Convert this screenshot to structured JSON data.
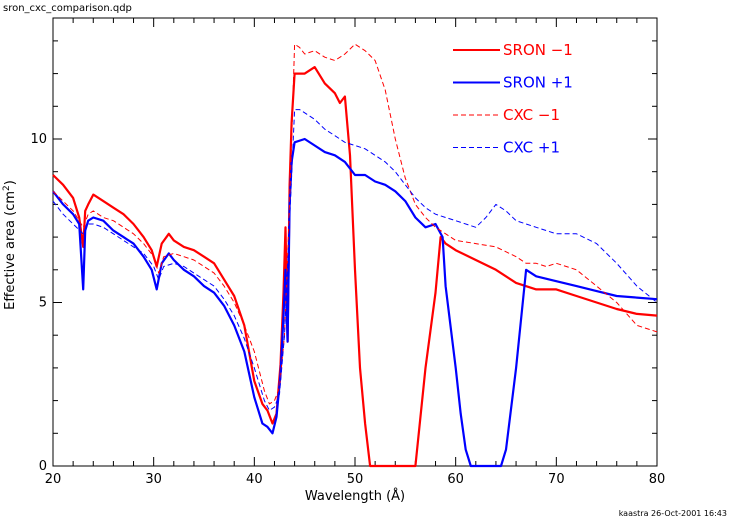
{
  "chart_data": {
    "type": "line",
    "title": "sron_cxc_comparison.qdp",
    "xlabel": "Wavelength (Å)",
    "ylabel_main": "Effective area (cm",
    "ylabel_sup": "2",
    "ylabel_close": ")",
    "footer": "kaastra 26-Oct-2001 16:43",
    "xlim": [
      20,
      80
    ],
    "ylim": [
      0,
      13.7
    ],
    "xticks": [
      20,
      30,
      40,
      50,
      60,
      70,
      80
    ],
    "xtick_labels": [
      "20",
      "30",
      "40",
      "50",
      "60",
      "70",
      "80"
    ],
    "yticks": [
      0,
      5,
      10
    ],
    "ytick_labels": [
      "0",
      "5",
      "10"
    ],
    "legend_position": "top-right",
    "series": [
      {
        "name": "SRON −1",
        "color": "#ff0000",
        "style": "solid",
        "x": [
          20,
          21,
          22,
          22.6,
          23,
          23.2,
          23.5,
          24,
          25,
          26,
          27,
          28,
          29,
          29.8,
          30.3,
          30.8,
          31.5,
          32,
          33,
          34,
          35,
          36,
          37,
          38,
          39,
          40,
          40.8,
          41.3,
          41.8,
          42.2,
          42.6,
          42.9,
          43.1,
          43.3,
          43.5,
          43.7,
          44,
          45,
          46,
          47,
          48,
          48.5,
          49,
          49.5,
          50,
          50.5,
          51,
          51.5,
          52,
          53,
          54,
          55,
          55.5,
          56,
          57,
          58,
          58.5,
          59,
          60,
          62,
          64,
          66,
          68,
          70,
          72,
          74,
          76,
          78,
          80
        ],
        "y": [
          8.9,
          8.6,
          8.2,
          7.6,
          6.7,
          7.8,
          8.0,
          8.3,
          8.1,
          7.9,
          7.7,
          7.4,
          7.0,
          6.6,
          6.1,
          6.8,
          7.1,
          6.9,
          6.7,
          6.6,
          6.4,
          6.2,
          5.7,
          5.2,
          4.3,
          2.6,
          1.9,
          1.7,
          1.3,
          1.6,
          3.1,
          5.3,
          7.3,
          3.8,
          8.6,
          10.5,
          12.0,
          12.0,
          12.2,
          11.7,
          11.4,
          11.1,
          11.3,
          9.5,
          6.0,
          3.0,
          1.3,
          0.0,
          0.0,
          0.0,
          0.0,
          0.0,
          0.0,
          0.0,
          3.0,
          5.3,
          7.0,
          6.8,
          6.6,
          6.3,
          6.0,
          5.6,
          5.4,
          5.4,
          5.2,
          5.0,
          4.8,
          4.65,
          4.6
        ]
      },
      {
        "name": "SRON +1",
        "color": "#0000ff",
        "style": "solid",
        "x": [
          20,
          21,
          22,
          22.6,
          23,
          23.2,
          23.5,
          24,
          25,
          26,
          27,
          28,
          29,
          29.8,
          30.3,
          30.8,
          31.5,
          32,
          33,
          34,
          35,
          36,
          37,
          38,
          39,
          40,
          40.8,
          41.3,
          41.8,
          42.2,
          42.6,
          42.9,
          43.1,
          43.3,
          43.5,
          43.7,
          44,
          45,
          46,
          47,
          48,
          49,
          50,
          51,
          52,
          53,
          54,
          55,
          56,
          57,
          58,
          58.7,
          59,
          60,
          60.5,
          61,
          61.5,
          62,
          63,
          64,
          64.5,
          65,
          66,
          66.5,
          67,
          68,
          70,
          72,
          74,
          76,
          78,
          80
        ],
        "y": [
          8.4,
          8.0,
          7.7,
          7.4,
          5.4,
          7.2,
          7.5,
          7.6,
          7.5,
          7.2,
          7.0,
          6.8,
          6.4,
          6.0,
          5.4,
          6.2,
          6.5,
          6.3,
          6.0,
          5.8,
          5.5,
          5.3,
          4.9,
          4.3,
          3.5,
          2.1,
          1.3,
          1.2,
          1.0,
          1.5,
          2.8,
          4.6,
          6.0,
          3.8,
          8.0,
          9.3,
          9.9,
          10.0,
          9.8,
          9.6,
          9.5,
          9.3,
          8.9,
          8.9,
          8.7,
          8.6,
          8.4,
          8.1,
          7.6,
          7.3,
          7.4,
          7.0,
          5.5,
          3.0,
          1.6,
          0.5,
          0.0,
          0.0,
          0.0,
          0.0,
          0.0,
          0.5,
          3.0,
          4.5,
          6.0,
          5.8,
          5.65,
          5.5,
          5.35,
          5.2,
          5.15,
          5.1
        ]
      },
      {
        "name": "CXC −1",
        "color": "#ff0000",
        "style": "dashed",
        "x": [
          20,
          21,
          22,
          23,
          23.5,
          24,
          25,
          26,
          27,
          28,
          29,
          30,
          30.5,
          31,
          32,
          33,
          34,
          35,
          36,
          37,
          38,
          39,
          40,
          41,
          41.5,
          42,
          42.5,
          43,
          43.5,
          44,
          44.5,
          45,
          46,
          47,
          48,
          49,
          50,
          51,
          52,
          53,
          54,
          55,
          56,
          57,
          58,
          59,
          60,
          62,
          64,
          66,
          67,
          68,
          69,
          70,
          72,
          74,
          76,
          78,
          80
        ],
        "y": [
          8.4,
          8.1,
          7.8,
          7.3,
          7.7,
          7.8,
          7.6,
          7.5,
          7.3,
          7.1,
          6.8,
          6.4,
          5.9,
          6.4,
          6.5,
          6.4,
          6.3,
          6.1,
          5.9,
          5.5,
          5.0,
          4.3,
          3.5,
          2.3,
          1.9,
          2.0,
          2.4,
          4.0,
          8.0,
          12.9,
          12.8,
          12.6,
          12.7,
          12.5,
          12.4,
          12.6,
          12.9,
          12.7,
          12.4,
          11.5,
          10.0,
          8.8,
          8.0,
          7.6,
          7.3,
          7.1,
          6.9,
          6.8,
          6.7,
          6.4,
          6.2,
          6.2,
          6.1,
          6.2,
          6.0,
          5.5,
          5.0,
          4.3,
          4.1
        ]
      },
      {
        "name": "CXC +1",
        "color": "#0000ff",
        "style": "dashed",
        "x": [
          20,
          21,
          22,
          23,
          23.5,
          24,
          25,
          26,
          27,
          28,
          29,
          30,
          30.5,
          31,
          32,
          33,
          34,
          35,
          36,
          37,
          38,
          39,
          40,
          41,
          41.5,
          42,
          42.5,
          43,
          43.5,
          44,
          44.5,
          45,
          46,
          47,
          48,
          49,
          50,
          51,
          52,
          53,
          54,
          55,
          56,
          57,
          58,
          59,
          60,
          62,
          63,
          64,
          65,
          66,
          67,
          68,
          69,
          70,
          72,
          74,
          76,
          78,
          80
        ],
        "y": [
          8.1,
          7.7,
          7.4,
          7.1,
          7.4,
          7.4,
          7.3,
          7.1,
          6.9,
          6.7,
          6.5,
          6.1,
          5.7,
          6.1,
          6.2,
          6.1,
          5.9,
          5.7,
          5.5,
          5.1,
          4.6,
          3.9,
          3.0,
          2.0,
          1.7,
          1.8,
          2.2,
          4.0,
          7.5,
          10.9,
          10.9,
          10.8,
          10.6,
          10.3,
          10.1,
          9.9,
          9.8,
          9.7,
          9.5,
          9.3,
          9.0,
          8.6,
          8.2,
          7.9,
          7.7,
          7.6,
          7.5,
          7.3,
          7.6,
          8.0,
          7.8,
          7.5,
          7.4,
          7.3,
          7.2,
          7.1,
          7.1,
          6.8,
          6.2,
          5.5,
          5.0
        ]
      }
    ]
  }
}
